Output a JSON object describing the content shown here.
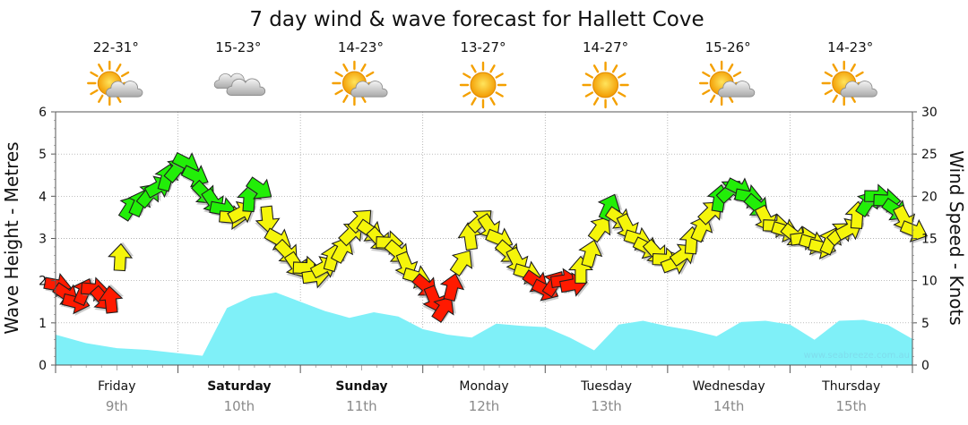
{
  "chart_data": {
    "type": "area",
    "title": "7 day wind & wave forecast for Hallett Cove",
    "y_left": {
      "label": "Wave Height - Metres",
      "range": [
        0,
        6
      ],
      "ticks": [
        0,
        1,
        2,
        3,
        4,
        5,
        6
      ]
    },
    "y_right": {
      "label": "Wind Speed - Knots",
      "range": [
        0,
        30
      ],
      "ticks": [
        0,
        5,
        10,
        15,
        20,
        25,
        30
      ]
    },
    "days": [
      {
        "name": "Friday",
        "date": "9th",
        "temp": "22-31°",
        "weather": "sun-cloud",
        "bold": false
      },
      {
        "name": "Saturday",
        "date": "10th",
        "temp": "15-23°",
        "weather": "cloud",
        "bold": true
      },
      {
        "name": "Sunday",
        "date": "11th",
        "temp": "14-23°",
        "weather": "sun-cloud",
        "bold": true
      },
      {
        "name": "Monday",
        "date": "12th",
        "temp": "13-27°",
        "weather": "sun",
        "bold": false
      },
      {
        "name": "Tuesday",
        "date": "13th",
        "temp": "14-27°",
        "weather": "sun",
        "bold": false
      },
      {
        "name": "Wednesday",
        "date": "14th",
        "temp": "15-26°",
        "weather": "sun-cloud",
        "bold": false
      },
      {
        "name": "Thursday",
        "date": "15th",
        "temp": "14-23°",
        "weather": "sun-cloud",
        "bold": false
      }
    ],
    "series": [
      {
        "name": "Wave Height",
        "unit": "m",
        "color": "#7ff0f8",
        "x": [
          0,
          0.25,
          0.5,
          0.75,
          1.0,
          1.2,
          1.4,
          1.6,
          1.8,
          2.0,
          2.2,
          2.4,
          2.6,
          2.8,
          3.0,
          3.2,
          3.4,
          3.6,
          3.8,
          4.0,
          4.2,
          4.4,
          4.6,
          4.8,
          5.0,
          5.2,
          5.4,
          5.6,
          5.8,
          6.0,
          6.2,
          6.4,
          6.6,
          6.8,
          7.0
        ],
        "values": [
          0.72,
          0.52,
          0.4,
          0.36,
          0.28,
          0.22,
          1.35,
          1.62,
          1.72,
          1.5,
          1.28,
          1.12,
          1.25,
          1.15,
          0.85,
          0.72,
          0.65,
          0.98,
          0.93,
          0.9,
          0.65,
          0.35,
          0.96,
          1.05,
          0.92,
          0.82,
          0.68,
          1.02,
          1.05,
          0.96,
          0.6,
          1.05,
          1.07,
          0.95,
          0.62
        ]
      },
      {
        "name": "Wind Speed",
        "unit": "knots",
        "values": [
          9.5,
          8.5,
          7.5,
          8.5,
          9.0,
          8.0,
          7.5,
          12.5,
          18.5,
          19.0,
          20.0,
          21.0,
          22.0,
          23.0,
          24.0,
          22.5,
          20.5,
          19.5,
          18.5,
          17.5,
          18.0,
          19.5,
          21.0,
          17.5,
          15.0,
          13.5,
          12.0,
          11.5,
          10.5,
          11.5,
          12.5,
          13.5,
          15.5,
          17.0,
          16.0,
          15.0,
          14.5,
          13.5,
          12.0,
          10.5,
          9.5,
          8.0,
          6.5,
          9.0,
          12.0,
          15.0,
          17.0,
          16.5,
          15.0,
          13.5,
          12.5,
          11.0,
          10.0,
          9.0,
          9.5,
          10.0,
          9.5,
          11.0,
          13.0,
          16.0,
          18.5,
          17.5,
          16.5,
          15.0,
          14.0,
          13.5,
          12.5,
          12.0,
          13.0,
          14.5,
          16.0,
          18.0,
          19.5,
          20.5,
          21.0,
          20.0,
          19.0,
          17.5,
          16.5,
          16.0,
          15.5,
          15.0,
          14.5,
          14.0,
          14.5,
          15.5,
          16.0,
          17.5,
          19.0,
          20.0,
          19.5,
          18.5,
          17.5,
          16.0
        ],
        "color_scale": [
          {
            "max": 10,
            "color": "#ff1a00"
          },
          {
            "max": 18,
            "color": "#f5f50a"
          },
          {
            "max": 30,
            "color": "#22ee08"
          }
        ]
      }
    ],
    "watermark": "www.seabreeze.com.au",
    "grid": true
  }
}
